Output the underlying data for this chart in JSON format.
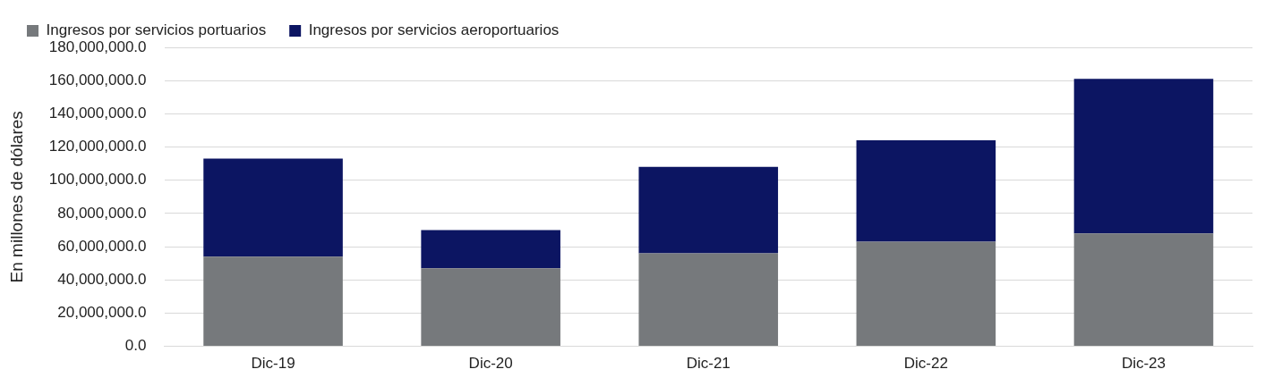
{
  "chart_data": {
    "type": "bar",
    "stacked": true,
    "ylabel": "En millones de dólares",
    "categories": [
      "Dic-19",
      "Dic-20",
      "Dic-21",
      "Dic-22",
      "Dic-23"
    ],
    "series": [
      {
        "name": "Ingresos por servicios portuarios",
        "color": "#76797c",
        "values": [
          54000000,
          47000000,
          56000000,
          63000000,
          68000000
        ]
      },
      {
        "name": "Ingresos por servicios aeroportuarios",
        "color": "#0c1562",
        "values": [
          59000000,
          23000000,
          52000000,
          61000000,
          93000000
        ]
      }
    ],
    "ylim": [
      0,
      180000000
    ],
    "yticks": [
      {
        "value": 0,
        "label": "0.0"
      },
      {
        "value": 20000000,
        "label": "20,000,000.0"
      },
      {
        "value": 40000000,
        "label": "40,000,000.0"
      },
      {
        "value": 60000000,
        "label": "60,000,000.0"
      },
      {
        "value": 80000000,
        "label": "80,000,000.0"
      },
      {
        "value": 100000000,
        "label": "100,000,000.0"
      },
      {
        "value": 120000000,
        "label": "120,000,000.0"
      },
      {
        "value": 140000000,
        "label": "140,000,000.0"
      },
      {
        "value": 160000000,
        "label": "160,000,000.0"
      },
      {
        "value": 180000000,
        "label": "180,000,000.0"
      }
    ],
    "grid": "y",
    "legend": "top left"
  }
}
